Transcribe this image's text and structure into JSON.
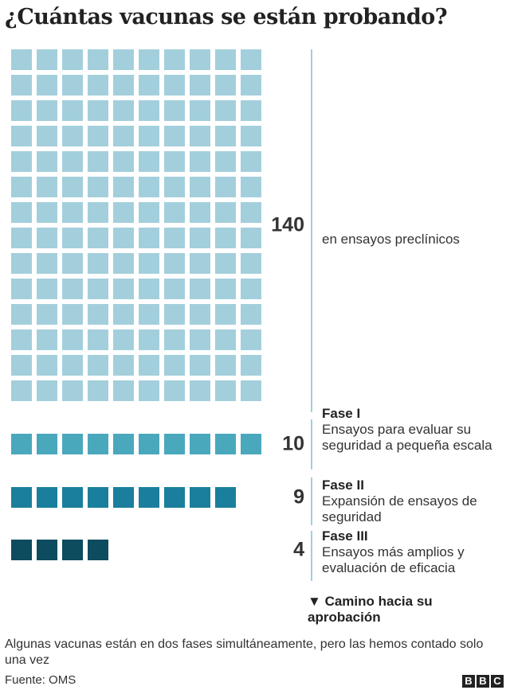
{
  "chart_data": {
    "type": "waffle",
    "title": "¿Cuántas vacunas se están probando?",
    "per_row": 10,
    "series": [
      {
        "description": "en ensayos preclínicos",
        "value": 140,
        "color": "#a3cfdc"
      },
      {
        "name": "Fase I",
        "description": "Ensayos para evaluar su seguridad a pequeña escala",
        "value": 10,
        "color": "#4aa8bd"
      },
      {
        "name": "Fase II",
        "description": "Expansión de ensayos de seguridad",
        "value": 9,
        "color": "#1a7f9c"
      },
      {
        "name": "Fase III",
        "description": "Ensayos más amplios y evaluación de eficacia",
        "value": 4,
        "color": "#0d4b5e"
      }
    ],
    "arrow_label": "Camino hacia su aprobación",
    "note": "Algunas vacunas están en dos fases simultáneamente, pero las hemos contado solo una vez",
    "source": "Fuente: OMS",
    "logo": "BBC"
  }
}
